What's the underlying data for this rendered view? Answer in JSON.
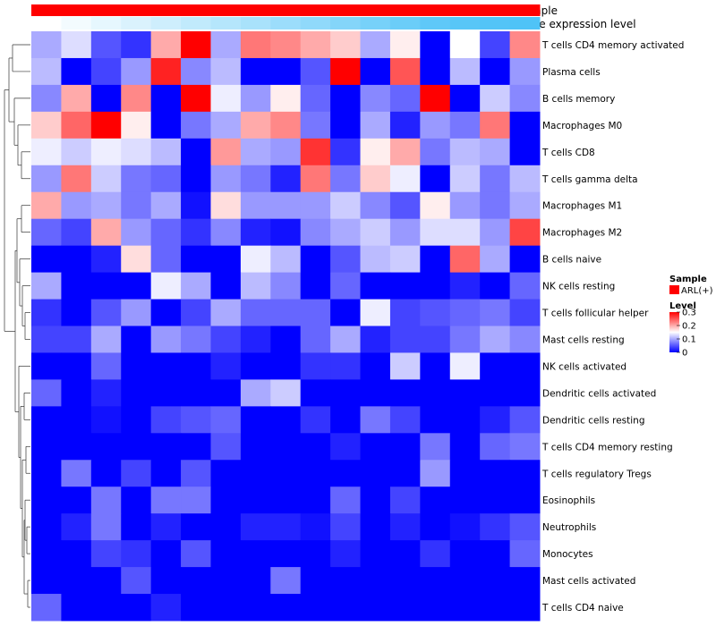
{
  "chart_data": {
    "type": "heatmap",
    "title": "",
    "annotation_labels": [
      "Sample",
      "Gene expression level"
    ],
    "sample_value": "ARL(+)",
    "color_scale": {
      "low": "#0000ff",
      "mid": "#ffffff",
      "high": "#ff0000",
      "min": 0,
      "mid_value": 0.15,
      "max": 0.3
    },
    "annotation_colors": {
      "sample": "#ff0000",
      "gene_low": "#ffffff",
      "gene_high": "#4fc3f7"
    },
    "gene_expression_gradient": [
      0.0,
      0.07,
      0.14,
      0.21,
      0.28,
      0.35,
      0.42,
      0.49,
      0.56,
      0.63,
      0.7,
      0.77,
      0.84,
      0.91,
      0.95,
      0.98,
      1.0
    ],
    "rows": [
      "T cells CD4 memory activated",
      "Plasma cells",
      "B cells memory",
      "Macrophages M0",
      "T cells CD8",
      "T cells gamma delta",
      "Macrophages M1",
      "Macrophages M2",
      "B cells naive",
      "NK cells resting",
      "T cells follicular helper",
      "Mast cells resting",
      "NK cells activated",
      "Dendritic cells activated",
      "Dendritic cells resting",
      "T cells CD4 memory resting",
      "T cells regulatory  Tregs",
      "Eosinophils",
      "Neutrophils",
      "Monocytes",
      "Mast cells activated",
      "T cells CD4 naive"
    ],
    "values": [
      [
        0.1,
        0.13,
        0.05,
        0.03,
        0.2,
        0.3,
        0.1,
        0.23,
        0.22,
        0.2,
        0.18,
        0.1,
        0.16,
        0.0,
        0.15,
        0.04,
        0.22
      ],
      [
        0.11,
        0.0,
        0.04,
        0.09,
        0.28,
        0.08,
        0.11,
        0.0,
        0.0,
        0.05,
        0.3,
        0.0,
        0.25,
        0.0,
        0.11,
        0.0,
        0.09
      ],
      [
        0.08,
        0.2,
        0.0,
        0.22,
        0.0,
        0.3,
        0.14,
        0.09,
        0.16,
        0.06,
        0.0,
        0.08,
        0.06,
        0.3,
        0.0,
        0.12,
        0.08
      ],
      [
        0.18,
        0.24,
        0.3,
        0.16,
        0.0,
        0.07,
        0.1,
        0.2,
        0.22,
        0.07,
        0.0,
        0.1,
        0.02,
        0.09,
        0.07,
        0.23,
        0.0
      ],
      [
        0.14,
        0.12,
        0.14,
        0.13,
        0.11,
        0.0,
        0.21,
        0.1,
        0.09,
        0.27,
        0.03,
        0.16,
        0.2,
        0.07,
        0.11,
        0.1,
        0.0
      ],
      [
        0.09,
        0.23,
        0.12,
        0.07,
        0.06,
        0.0,
        0.09,
        0.07,
        0.02,
        0.23,
        0.07,
        0.18,
        0.14,
        0.0,
        0.12,
        0.07,
        0.11
      ],
      [
        0.2,
        0.09,
        0.1,
        0.07,
        0.1,
        0.01,
        0.17,
        0.09,
        0.09,
        0.09,
        0.12,
        0.08,
        0.05,
        0.16,
        0.09,
        0.07,
        0.1
      ],
      [
        0.06,
        0.04,
        0.2,
        0.09,
        0.06,
        0.03,
        0.08,
        0.02,
        0.01,
        0.08,
        0.1,
        0.12,
        0.09,
        0.13,
        0.13,
        0.09,
        0.26
      ],
      [
        0.0,
        0.0,
        0.02,
        0.17,
        0.06,
        0.0,
        0.0,
        0.14,
        0.11,
        0.0,
        0.05,
        0.11,
        0.12,
        0.0,
        0.24,
        0.1,
        0.0
      ],
      [
        0.1,
        0.0,
        0.0,
        0.0,
        0.14,
        0.1,
        0.0,
        0.11,
        0.08,
        0.0,
        0.06,
        0.0,
        0.0,
        0.0,
        0.02,
        0.0,
        0.06
      ],
      [
        0.03,
        0.0,
        0.05,
        0.09,
        0.0,
        0.04,
        0.1,
        0.06,
        0.06,
        0.06,
        0.0,
        0.14,
        0.04,
        0.05,
        0.06,
        0.07,
        0.04
      ],
      [
        0.04,
        0.04,
        0.1,
        0.0,
        0.09,
        0.07,
        0.04,
        0.02,
        0.0,
        0.06,
        0.1,
        0.02,
        0.04,
        0.04,
        0.07,
        0.1,
        0.08
      ],
      [
        0.0,
        0.0,
        0.06,
        0.0,
        0.0,
        0.0,
        0.02,
        0.0,
        0.0,
        0.03,
        0.03,
        0.0,
        0.12,
        0.0,
        0.14,
        0.0,
        0.0
      ],
      [
        0.06,
        0.0,
        0.02,
        0.0,
        0.0,
        0.0,
        0.0,
        0.1,
        0.12,
        0.0,
        0.0,
        0.0,
        0.0,
        0.0,
        0.0,
        0.0,
        0.0
      ],
      [
        0.0,
        0.0,
        0.01,
        0.0,
        0.04,
        0.05,
        0.06,
        0.0,
        0.0,
        0.03,
        0.0,
        0.07,
        0.04,
        0.0,
        0.0,
        0.02,
        0.05
      ],
      [
        0.0,
        0.0,
        0.0,
        0.0,
        0.0,
        0.0,
        0.05,
        0.0,
        0.0,
        0.0,
        0.02,
        0.0,
        0.0,
        0.07,
        0.0,
        0.06,
        0.07
      ],
      [
        0.0,
        0.07,
        0.0,
        0.04,
        0.0,
        0.05,
        0.0,
        0.0,
        0.0,
        0.0,
        0.0,
        0.0,
        0.0,
        0.09,
        0.0,
        0.0,
        0.0
      ],
      [
        0.0,
        0.0,
        0.07,
        0.0,
        0.07,
        0.07,
        0.0,
        0.0,
        0.0,
        0.0,
        0.06,
        0.0,
        0.04,
        0.0,
        0.0,
        0.0,
        0.0
      ],
      [
        0.0,
        0.02,
        0.07,
        0.0,
        0.02,
        0.0,
        0.0,
        0.02,
        0.02,
        0.01,
        0.04,
        0.0,
        0.02,
        0.0,
        0.01,
        0.03,
        0.05
      ],
      [
        0.0,
        0.0,
        0.04,
        0.03,
        0.0,
        0.05,
        0.0,
        0.0,
        0.0,
        0.0,
        0.02,
        0.0,
        0.0,
        0.03,
        0.0,
        0.0,
        0.06
      ],
      [
        0.0,
        0.0,
        0.0,
        0.05,
        0.0,
        0.0,
        0.0,
        0.0,
        0.07,
        0.0,
        0.0,
        0.0,
        0.0,
        0.0,
        0.0,
        0.0,
        0.0
      ],
      [
        0.06,
        0.0,
        0.0,
        0.0,
        0.02,
        0.0,
        0.0,
        0.0,
        0.0,
        0.0,
        0.0,
        0.0,
        0.0,
        0.0,
        0.0,
        0.0,
        0.0
      ]
    ],
    "legend": {
      "sample_title": "Sample",
      "sample_item": "ARL(+)",
      "level_title": "Level",
      "level_ticks": [
        "0.3",
        "0.2",
        "0.1",
        "0"
      ],
      "level_tick_values": [
        0.3,
        0.2,
        0.1,
        0
      ]
    }
  }
}
